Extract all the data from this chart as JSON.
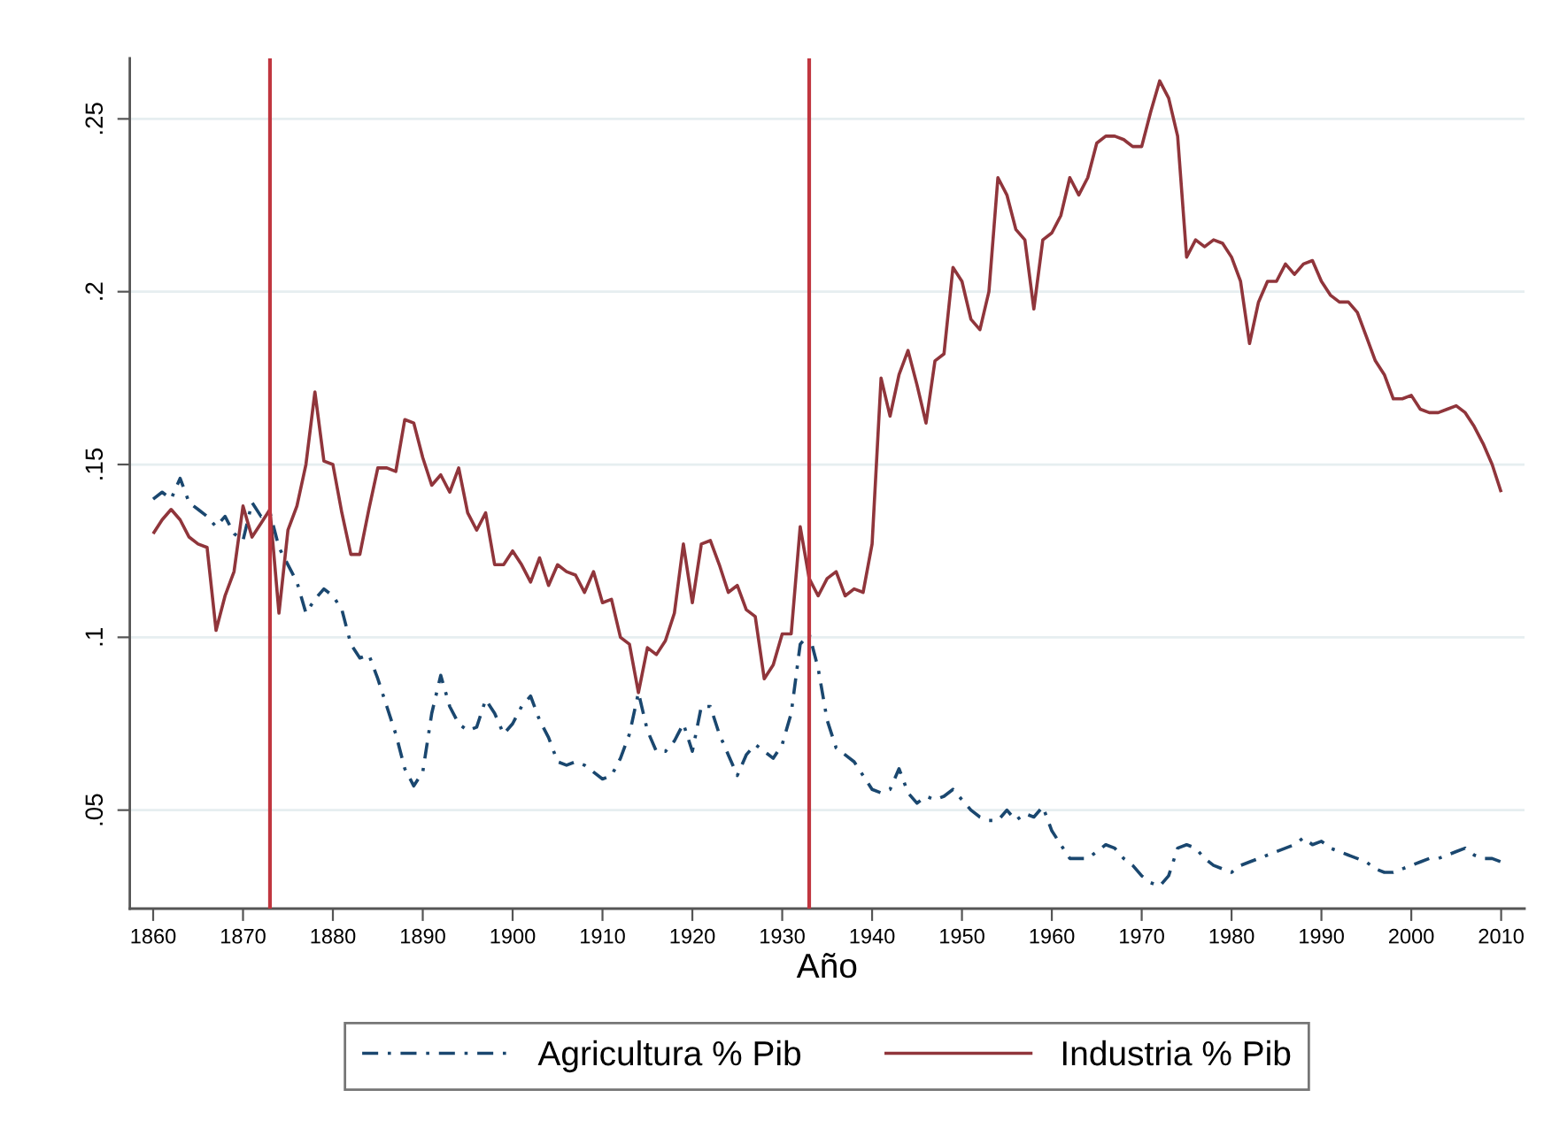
{
  "chart_data": {
    "type": "line",
    "xlabel": "Año",
    "x": [
      1860,
      1861,
      1862,
      1863,
      1864,
      1865,
      1866,
      1867,
      1868,
      1869,
      1870,
      1871,
      1872,
      1873,
      1874,
      1875,
      1876,
      1877,
      1878,
      1879,
      1880,
      1881,
      1882,
      1883,
      1884,
      1885,
      1886,
      1887,
      1888,
      1889,
      1890,
      1891,
      1892,
      1893,
      1894,
      1895,
      1896,
      1897,
      1898,
      1899,
      1900,
      1901,
      1902,
      1903,
      1904,
      1905,
      1906,
      1907,
      1908,
      1909,
      1910,
      1911,
      1912,
      1913,
      1914,
      1915,
      1916,
      1917,
      1918,
      1919,
      1920,
      1921,
      1922,
      1923,
      1924,
      1925,
      1926,
      1927,
      1928,
      1929,
      1930,
      1931,
      1932,
      1933,
      1934,
      1935,
      1936,
      1937,
      1938,
      1939,
      1940,
      1941,
      1942,
      1943,
      1944,
      1945,
      1946,
      1947,
      1948,
      1949,
      1950,
      1951,
      1952,
      1953,
      1954,
      1955,
      1956,
      1957,
      1958,
      1959,
      1960,
      1961,
      1962,
      1963,
      1964,
      1965,
      1966,
      1967,
      1968,
      1969,
      1970,
      1971,
      1972,
      1973,
      1974,
      1975,
      1976,
      1977,
      1978,
      1979,
      1980,
      1981,
      1982,
      1983,
      1984,
      1985,
      1986,
      1987,
      1988,
      1989,
      1990,
      1991,
      1992,
      1993,
      1994,
      1995,
      1996,
      1997,
      1998,
      1999,
      2000,
      2001,
      2002,
      2003,
      2004,
      2005,
      2006,
      2007,
      2008,
      2009,
      2010
    ],
    "series": [
      {
        "name": "Agricultura % Pib",
        "color": "#1a476f",
        "line_style": "dashdot",
        "values": [
          0.14,
          0.142,
          0.14,
          0.146,
          0.139,
          0.137,
          0.135,
          0.132,
          0.135,
          0.13,
          0.128,
          0.139,
          0.135,
          0.136,
          0.126,
          0.121,
          0.116,
          0.107,
          0.111,
          0.114,
          0.112,
          0.108,
          0.098,
          0.094,
          0.095,
          0.088,
          0.08,
          0.072,
          0.062,
          0.057,
          0.061,
          0.078,
          0.089,
          0.08,
          0.075,
          0.073,
          0.074,
          0.082,
          0.078,
          0.072,
          0.075,
          0.08,
          0.083,
          0.076,
          0.071,
          0.064,
          0.063,
          0.064,
          0.063,
          0.061,
          0.059,
          0.06,
          0.065,
          0.072,
          0.084,
          0.073,
          0.067,
          0.067,
          0.07,
          0.075,
          0.067,
          0.08,
          0.08,
          0.072,
          0.066,
          0.06,
          0.066,
          0.069,
          0.067,
          0.065,
          0.069,
          0.078,
          0.098,
          0.101,
          0.091,
          0.076,
          0.068,
          0.066,
          0.064,
          0.06,
          0.056,
          0.055,
          0.056,
          0.062,
          0.055,
          0.052,
          0.054,
          0.053,
          0.054,
          0.056,
          0.053,
          0.05,
          0.048,
          0.047,
          0.047,
          0.05,
          0.047,
          0.049,
          0.048,
          0.051,
          0.044,
          0.04,
          0.036,
          0.036,
          0.036,
          0.038,
          0.04,
          0.039,
          0.036,
          0.034,
          0.031,
          0.029,
          0.028,
          0.031,
          0.039,
          0.04,
          0.039,
          0.036,
          0.034,
          0.033,
          0.032,
          0.034,
          0.035,
          0.036,
          0.037,
          0.038,
          0.039,
          0.04,
          0.042,
          0.04,
          0.041,
          0.039,
          0.038,
          0.037,
          0.036,
          0.035,
          0.033,
          0.032,
          0.032,
          0.033,
          0.034,
          0.035,
          0.036,
          0.036,
          0.037,
          0.038,
          0.039,
          0.037,
          0.036,
          0.036,
          0.035
        ]
      },
      {
        "name": "Industria % Pib",
        "color": "#90353b",
        "line_style": "solid",
        "values": [
          0.13,
          0.134,
          0.137,
          0.134,
          0.129,
          0.127,
          0.126,
          0.102,
          0.112,
          0.119,
          0.138,
          0.129,
          0.133,
          0.137,
          0.107,
          0.131,
          0.138,
          0.15,
          0.171,
          0.151,
          0.15,
          0.136,
          0.124,
          0.124,
          0.137,
          0.149,
          0.149,
          0.148,
          0.163,
          0.162,
          0.152,
          0.144,
          0.147,
          0.142,
          0.149,
          0.136,
          0.131,
          0.136,
          0.121,
          0.121,
          0.125,
          0.121,
          0.116,
          0.123,
          0.115,
          0.121,
          0.119,
          0.118,
          0.113,
          0.119,
          0.11,
          0.111,
          0.1,
          0.098,
          0.084,
          0.097,
          0.095,
          0.099,
          0.107,
          0.127,
          0.11,
          0.127,
          0.128,
          0.121,
          0.113,
          0.115,
          0.108,
          0.106,
          0.088,
          0.092,
          0.101,
          0.101,
          0.132,
          0.117,
          0.112,
          0.117,
          0.119,
          0.112,
          0.114,
          0.113,
          0.127,
          0.175,
          0.164,
          0.176,
          0.183,
          0.173,
          0.162,
          0.18,
          0.182,
          0.207,
          0.203,
          0.192,
          0.189,
          0.2,
          0.233,
          0.228,
          0.218,
          0.215,
          0.195,
          0.215,
          0.217,
          0.222,
          0.233,
          0.228,
          0.233,
          0.243,
          0.245,
          0.245,
          0.244,
          0.242,
          0.242,
          0.252,
          0.261,
          0.256,
          0.245,
          0.21,
          0.215,
          0.213,
          0.215,
          0.214,
          0.21,
          0.203,
          0.185,
          0.197,
          0.203,
          0.203,
          0.208,
          0.205,
          0.208,
          0.209,
          0.203,
          0.199,
          0.197,
          0.197,
          0.194,
          0.187,
          0.18,
          0.176,
          0.169,
          0.169,
          0.17,
          0.166,
          0.165,
          0.165,
          0.166,
          0.167,
          0.165,
          0.161,
          0.156,
          0.15,
          0.142
        ]
      }
    ],
    "xlim": [
      1857.4,
      2012.6
    ],
    "ylim": [
      0.0215,
      0.2675
    ],
    "xticks": [
      1860,
      1870,
      1880,
      1890,
      1900,
      1910,
      1920,
      1930,
      1940,
      1950,
      1960,
      1970,
      1980,
      1990,
      2000,
      2010
    ],
    "yticks": [
      {
        "value": 0.05,
        "label": ".05"
      },
      {
        "value": 0.1,
        "label": ".1"
      },
      {
        "value": 0.15,
        "label": ".15"
      },
      {
        "value": 0.2,
        "label": ".2"
      },
      {
        "value": 0.25,
        "label": ".25"
      }
    ],
    "ref_lines": [
      {
        "axis": "x",
        "value": 1873,
        "color": "#c0363f"
      },
      {
        "axis": "x",
        "value": 1933,
        "color": "#c0363f"
      }
    ],
    "grid": "y",
    "legend": "bottom",
    "marker": "none"
  }
}
